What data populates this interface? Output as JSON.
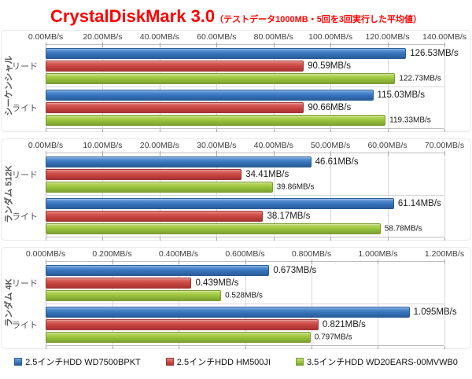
{
  "title": {
    "main": "CrystalDiskMark 3.0",
    "sub": "（テストデータ1000MB・5回を3回実行した平均値）"
  },
  "colors": {
    "title_red": "#ff0000",
    "series_blue": "#3c78c0",
    "series_red": "#cd4a46",
    "series_green": "#9dc73d",
    "gridline": "#d9d9d9",
    "axis_line": "#bfbfbf"
  },
  "legend": [
    {
      "label": "2.5インチHDD WD7500BPKT",
      "color_key": "blue"
    },
    {
      "label": "2.5インチHDD HM500JI",
      "color_key": "red"
    },
    {
      "label": "3.5インチHDD WD20EARS-00MVWB0",
      "color_key": "green"
    }
  ],
  "chart_data": [
    {
      "id": "sequential",
      "type": "bar",
      "orientation": "horizontal",
      "axis_title": "シーケンシャル",
      "categories": [
        "リード",
        "ライト"
      ],
      "xlim": [
        0,
        140
      ],
      "tick_step": 20,
      "x_ticks": [
        "0.00MB/s",
        "20.00MB/s",
        "40.00MB/s",
        "60.00MB/s",
        "80.00MB/s",
        "100.00MB/s",
        "120.00MB/s",
        "140.00MB/s"
      ],
      "grid": true,
      "series": [
        {
          "name": "2.5インチHDD WD7500BPKT",
          "color_key": "blue",
          "values": [
            126.53,
            115.03
          ],
          "data_labels": [
            "126.53MB/s",
            "115.03MB/s"
          ]
        },
        {
          "name": "2.5インチHDD HM500JI",
          "color_key": "red",
          "values": [
            90.59,
            90.66
          ],
          "data_labels": [
            "90.59MB/s",
            "90.66MB/s"
          ]
        },
        {
          "name": "3.5インチHDD WD20EARS-00MVWB0",
          "color_key": "green",
          "values": [
            122.73,
            119.33
          ],
          "data_labels": [
            "122.73MB/s",
            "119.33MB/s"
          ]
        }
      ]
    },
    {
      "id": "random-512k",
      "type": "bar",
      "orientation": "horizontal",
      "axis_title": "ランダム 512K",
      "categories": [
        "リード",
        "ライト"
      ],
      "xlim": [
        0,
        70
      ],
      "tick_step": 10,
      "x_ticks": [
        "0.00MB/s",
        "10.00MB/s",
        "20.00MB/s",
        "30.00MB/s",
        "40.00MB/s",
        "50.00MB/s",
        "60.00MB/s",
        "70.00MB/s"
      ],
      "grid": true,
      "series": [
        {
          "name": "2.5インチHDD WD7500BPKT",
          "color_key": "blue",
          "values": [
            46.61,
            61.14
          ],
          "data_labels": [
            "46.61MB/s",
            "61.14MB/s"
          ]
        },
        {
          "name": "2.5インチHDD HM500JI",
          "color_key": "red",
          "values": [
            34.41,
            38.17
          ],
          "data_labels": [
            "34.41MB/s",
            "38.17MB/s"
          ]
        },
        {
          "name": "3.5インチHDD WD20EARS-00MVWB0",
          "color_key": "green",
          "values": [
            39.86,
            58.78
          ],
          "data_labels": [
            "39.86MB/s",
            "58.78MB/s"
          ]
        }
      ]
    },
    {
      "id": "random-4k",
      "type": "bar",
      "orientation": "horizontal",
      "axis_title": "ランダム 4K",
      "categories": [
        "リード",
        "ライト"
      ],
      "xlim": [
        0,
        1.2
      ],
      "tick_step": 0.2,
      "x_ticks": [
        "0.000MB/s",
        "0.200MB/s",
        "0.400MB/s",
        "0.600MB/s",
        "0.800MB/s",
        "1.000MB/s",
        "1.200MB/s"
      ],
      "grid": true,
      "series": [
        {
          "name": "2.5インチHDD WD7500BPKT",
          "color_key": "blue",
          "values": [
            0.673,
            1.095
          ],
          "data_labels": [
            "0.673MB/s",
            "1.095MB/s"
          ]
        },
        {
          "name": "2.5インチHDD HM500JI",
          "color_key": "red",
          "values": [
            0.439,
            0.821
          ],
          "data_labels": [
            "0.439MB/s",
            "0.821MB/s"
          ]
        },
        {
          "name": "3.5インチHDD WD20EARS-00MVWB0",
          "color_key": "green",
          "values": [
            0.528,
            0.797
          ],
          "data_labels": [
            "0.528MB/s",
            "0.797MB/s"
          ]
        }
      ]
    }
  ]
}
